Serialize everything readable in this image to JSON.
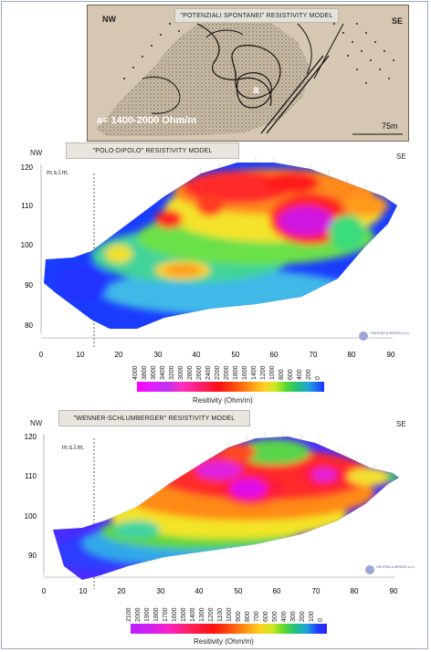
{
  "top_map": {
    "title": "\"POTENZIALI SPONTANEI\"  RESISTIVITY MODEL",
    "nw": "NW",
    "se": "SE",
    "anomaly_letter": "a",
    "annotation": "a= 1400-2000 Ohm/m",
    "scale": "75m"
  },
  "panel_1": {
    "title": "\"POLO-DIPOLO\" RESISTIVITY MODEL",
    "nw": "NW",
    "se": "SE",
    "elevation_unit": "m.s.l.m.",
    "y_ticks": [
      "120",
      "110",
      "100",
      "90",
      "80"
    ],
    "x_ticks": [
      "0",
      "10",
      "20",
      "30",
      "40",
      "50",
      "60",
      "70",
      "80",
      "90"
    ],
    "logo": "GEOFISICA SERVIZI s.n.c.",
    "colorbar_values": [
      "4000",
      "3800",
      "3600",
      "3400",
      "3200",
      "3000",
      "2800",
      "2600",
      "2400",
      "2200",
      "2000",
      "1800",
      "1600",
      "1400",
      "1200",
      "1000",
      "800",
      "600",
      "400",
      "200",
      "0"
    ],
    "colorbar_label": "Resitivity (Ohm/m)"
  },
  "panel_2": {
    "title": "\"WENNER-SCHLUMBERGER\" RESISTIVITY MODEL",
    "nw": "NW",
    "se": "SE",
    "elevation_unit": "m.s.l.m.",
    "y_ticks": [
      "120",
      "110",
      "100",
      "90"
    ],
    "x_ticks": [
      "0",
      "10",
      "20",
      "30",
      "40",
      "50",
      "60",
      "70",
      "80",
      "90"
    ],
    "logo": "GEOFISICA SERVIZI s.n.c.",
    "colorbar_values": [
      "2100",
      "2000",
      "1900",
      "1800",
      "1700",
      "1600",
      "1500",
      "1400",
      "1300",
      "1200",
      "1100",
      "1000",
      "900",
      "800",
      "700",
      "600",
      "500",
      "400",
      "300",
      "200",
      "100",
      "0"
    ],
    "colorbar_label": "Resitivity (Ohm/m)"
  }
}
